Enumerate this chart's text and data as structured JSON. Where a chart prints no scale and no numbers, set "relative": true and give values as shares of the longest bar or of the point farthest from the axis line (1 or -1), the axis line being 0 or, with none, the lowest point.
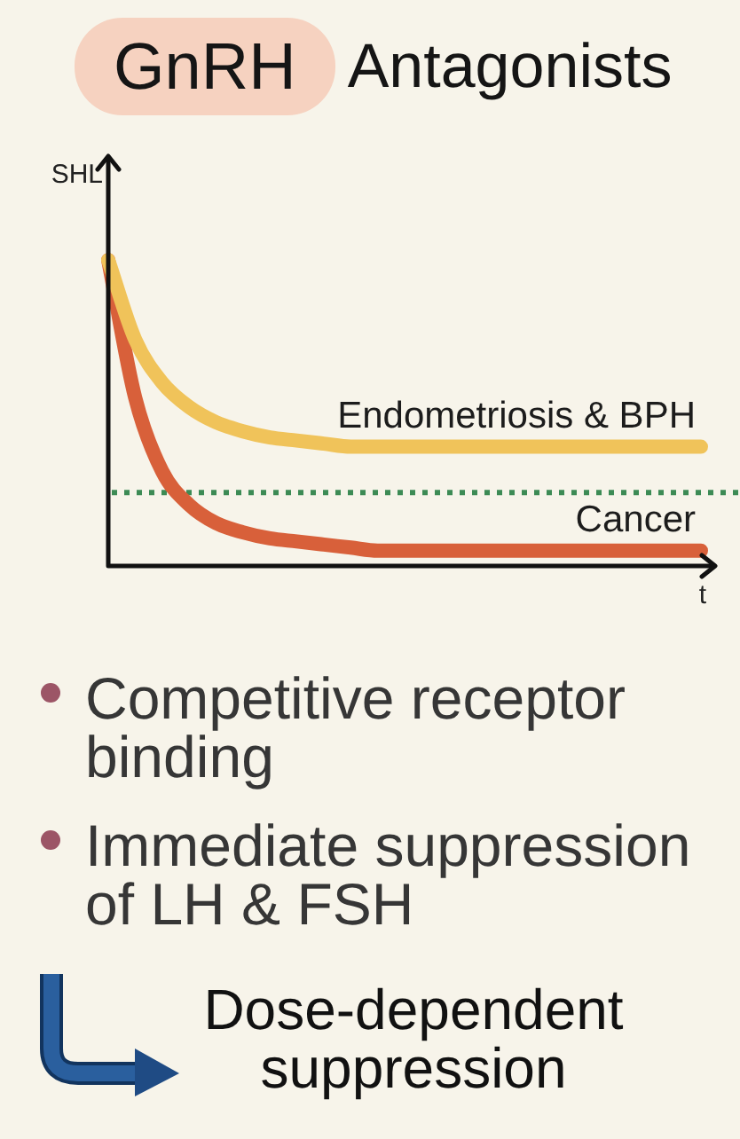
{
  "chart_data": {
    "type": "line",
    "title": "GnRH Antagonists",
    "xlabel": "t",
    "ylabel": "SHL",
    "relative": true,
    "marker": "none",
    "categories": [
      null,
      null,
      null,
      null,
      null,
      null,
      null,
      null,
      null,
      null,
      null,
      null,
      null,
      null,
      null,
      null,
      null,
      null,
      null,
      null,
      null,
      null,
      null
    ],
    "series": [
      {
        "name": "Endometriosis & BPH",
        "color": "#f0c35a",
        "values": [
          1.0,
          0.74,
          0.6,
          0.52,
          0.47,
          0.44,
          0.42,
          0.41,
          0.4,
          0.39,
          0.39,
          0.39,
          0.39,
          0.39,
          0.39,
          0.39,
          0.39,
          0.39,
          0.39,
          0.39,
          0.39,
          0.39,
          0.39
        ]
      },
      {
        "name": "Cancer",
        "color": "#d8603a",
        "values": [
          1.0,
          0.55,
          0.31,
          0.2,
          0.14,
          0.11,
          0.09,
          0.08,
          0.07,
          0.06,
          0.05,
          0.05,
          0.05,
          0.05,
          0.05,
          0.05,
          0.05,
          0.05,
          0.05,
          0.05,
          0.05,
          0.05,
          0.05
        ]
      }
    ],
    "ref_lines": [
      {
        "axis": "y",
        "value": 0.24,
        "color": "#3d8b55",
        "line_style": "dotted"
      }
    ],
    "annotations": [
      "Competitive receptor binding",
      "Immediate suppression of LH & FSH",
      "Dose-dependent suppression"
    ]
  }
}
